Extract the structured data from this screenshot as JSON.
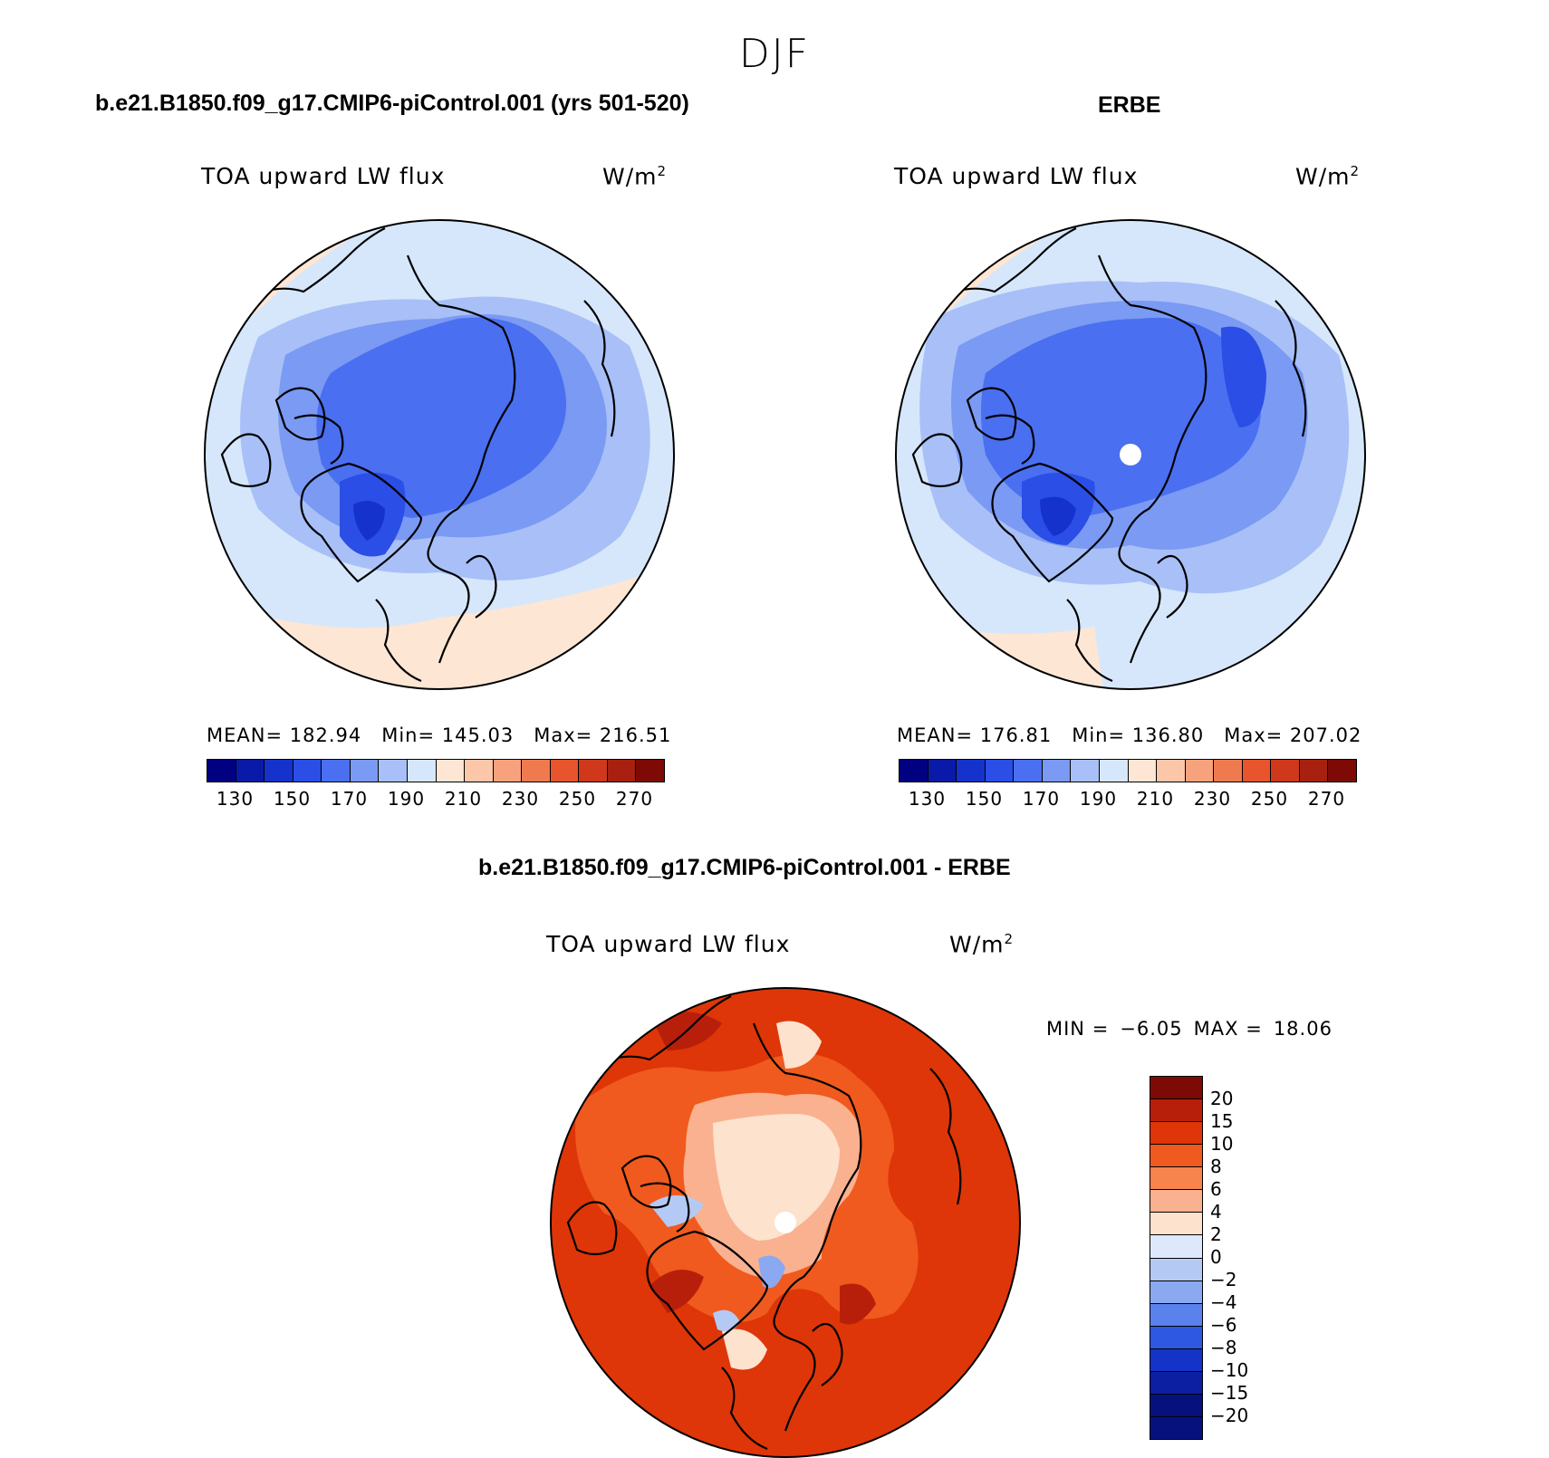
{
  "page": {
    "title": "DJF"
  },
  "top_left": {
    "case": "b.e21.B1850.f09_g17.CMIP6-piControl.001 (yrs 501-520)",
    "variable": "TOA upward LW flux",
    "units": "W/m",
    "units_exp": "2",
    "mean": "MEAN= 182.94",
    "min": "Min= 145.03",
    "max": "Max= 216.51"
  },
  "top_right": {
    "case": "ERBE",
    "variable": "TOA upward LW flux",
    "units": "W/m",
    "units_exp": "2",
    "mean": "MEAN= 176.81",
    "min": "Min= 136.80",
    "max": "Max= 207.02"
  },
  "bottom": {
    "case": "b.e21.B1850.f09_g17.CMIP6-piControl.001 - ERBE",
    "variable": "TOA upward LW flux",
    "units": "W/m",
    "units_exp": "2",
    "min": "MIN =",
    "min_val": "−6.05",
    "max": "MAX =",
    "max_val": "18.06"
  },
  "abs_colorbar": {
    "colors": [
      "#000080",
      "#0a1aa8",
      "#1533cc",
      "#2a4ee6",
      "#4a6ff0",
      "#7a9af3",
      "#a8c0f7",
      "#d6e7fb",
      "#fde6d4",
      "#fbc7a8",
      "#f7a27c",
      "#f07a50",
      "#e8552c",
      "#d0381c",
      "#a8200f",
      "#7e0a05"
    ],
    "labels": [
      "130",
      "150",
      "170",
      "190",
      "210",
      "230",
      "250",
      "270"
    ]
  },
  "diff_colorbar": {
    "colors": [
      "#7e0a05",
      "#b81f0b",
      "#de3608",
      "#f05a1e",
      "#f7844d",
      "#f9b190",
      "#fde2ce",
      "#dde9fa",
      "#b4caf5",
      "#8aa9f0",
      "#5b82ec",
      "#2e58e2",
      "#1433c7",
      "#0c1fa3",
      "#06117e"
    ],
    "labels": [
      "20",
      "15",
      "10",
      "8",
      "6",
      "4",
      "2",
      "0",
      "−2",
      "−4",
      "−6",
      "−8",
      "−10",
      "−15",
      "−20"
    ]
  }
}
